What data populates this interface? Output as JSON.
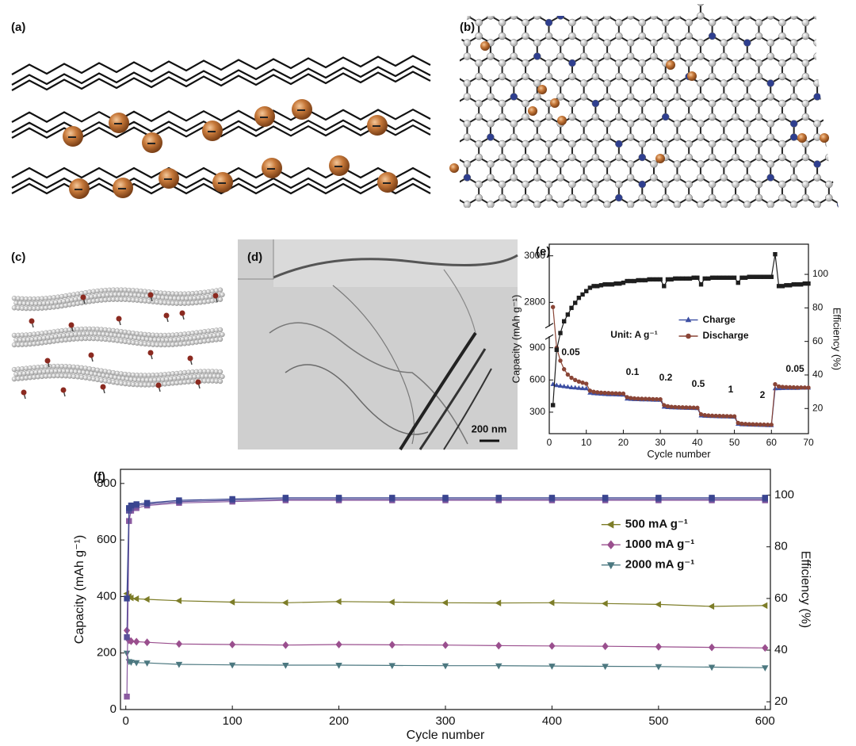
{
  "panels": {
    "a": "(a)",
    "b": "(b)",
    "c": "(c)",
    "d": "(d)",
    "e": "(e)",
    "f": "(f)"
  },
  "scale_bar": "200 nm",
  "chart_data": [
    {
      "type": "line",
      "xlabel": "Cycle number",
      "ylabel": "Capacity (mAh g⁻¹)",
      "y2label": "Efficiency (%)",
      "x": [
        1,
        2,
        3,
        4,
        5,
        6,
        7,
        8,
        9,
        10,
        11,
        12,
        13,
        14,
        15,
        16,
        17,
        18,
        19,
        20,
        21,
        22,
        23,
        24,
        25,
        26,
        27,
        28,
        29,
        30,
        31,
        32,
        33,
        34,
        35,
        36,
        37,
        38,
        39,
        40,
        41,
        42,
        43,
        44,
        45,
        46,
        47,
        48,
        49,
        50,
        51,
        52,
        53,
        54,
        55,
        56,
        57,
        58,
        59,
        60,
        61,
        62,
        63,
        64,
        65,
        66,
        67,
        68,
        69,
        70
      ],
      "xlim": [
        0,
        70
      ],
      "xticks": [
        0,
        10,
        20,
        30,
        40,
        50,
        60,
        70
      ],
      "ylim": [
        100,
        3050
      ],
      "ybreak": [
        1000,
        2700
      ],
      "yticks": [
        300,
        600,
        900,
        2800,
        3000
      ],
      "y2lim": [
        5,
        118
      ],
      "y2ticks": [
        20,
        40,
        60,
        80,
        100
      ],
      "legend": "right",
      "annotations": [
        "Unit: A g⁻¹",
        "0.05",
        "0.1",
        "0.2",
        "0.5",
        "1",
        "2",
        "0.05"
      ],
      "series": [
        {
          "name": "Charge",
          "color": "#3d4fa3",
          "marker": "triangle",
          "values": [
            560,
            550,
            545,
            540,
            535,
            530,
            528,
            525,
            522,
            520,
            480,
            475,
            472,
            470,
            468,
            466,
            465,
            464,
            463,
            462,
            425,
            422,
            420,
            419,
            418,
            417,
            416,
            415,
            414,
            413,
            350,
            345,
            343,
            342,
            341,
            340,
            339,
            338,
            337,
            336,
            268,
            265,
            263,
            262,
            261,
            260,
            259,
            258,
            257,
            256,
            190,
            186,
            184,
            183,
            182,
            181,
            180,
            179,
            178,
            178,
            520,
            522,
            523,
            524,
            524,
            525,
            525,
            526,
            526,
            527
          ]
        },
        {
          "name": "Discharge",
          "color": "#8a4536",
          "marker": "circle",
          "values": [
            2780,
            900,
            780,
            700,
            650,
            620,
            600,
            585,
            575,
            565,
            500,
            490,
            485,
            482,
            480,
            478,
            476,
            475,
            474,
            473,
            440,
            432,
            428,
            426,
            425,
            424,
            423,
            422,
            421,
            420,
            365,
            355,
            350,
            348,
            346,
            345,
            344,
            343,
            342,
            341,
            280,
            272,
            269,
            267,
            266,
            265,
            264,
            263,
            262,
            261,
            200,
            193,
            190,
            188,
            187,
            186,
            185,
            184,
            183,
            183,
            560,
            540,
            535,
            533,
            532,
            531,
            530,
            530,
            529,
            529
          ]
        },
        {
          "color": "#1e1e1e",
          "marker": "square",
          "axis": "y2",
          "values": [
            22,
            55,
            65,
            72,
            76,
            80,
            83,
            86,
            88,
            90,
            92,
            93,
            93,
            93.5,
            94,
            94,
            94,
            94.5,
            94.5,
            95,
            96,
            96,
            96,
            96.5,
            96.5,
            96.5,
            97,
            97,
            97,
            97,
            93,
            97,
            97,
            97.5,
            97.5,
            97.5,
            97.5,
            97.5,
            98,
            98,
            94,
            97.5,
            97.5,
            98,
            98,
            98,
            98,
            98,
            98,
            98,
            95,
            98,
            98,
            98.5,
            98.5,
            98.5,
            98.5,
            98.5,
            98.5,
            98.5,
            112,
            93,
            93,
            93.5,
            93.5,
            94,
            94,
            94,
            94.5,
            94.5
          ]
        }
      ]
    },
    {
      "type": "line",
      "xlabel": "Cycle number",
      "ylabel": "Capacity (mAh g⁻¹)",
      "y2label": "Efficiency (%)",
      "x": [
        1,
        3,
        5,
        10,
        20,
        50,
        100,
        150,
        200,
        250,
        300,
        350,
        400,
        450,
        500,
        550,
        600
      ],
      "xlim": [
        -5,
        605
      ],
      "xticks": [
        0,
        100,
        200,
        300,
        400,
        500,
        600
      ],
      "ylim": [
        0,
        850
      ],
      "yticks": [
        0,
        200,
        400,
        600,
        800
      ],
      "y2lim": [
        17,
        110
      ],
      "y2ticks": [
        20,
        40,
        60,
        80,
        100
      ],
      "legend": "upper right",
      "series": [
        {
          "name": "500 mA g⁻¹",
          "color": "#7d7d28",
          "marker": "left-triangle",
          "values": [
            410,
            400,
            395,
            392,
            390,
            385,
            380,
            378,
            382,
            380,
            378,
            377,
            378,
            375,
            372,
            365,
            368
          ]
        },
        {
          "name": "1000 mA g⁻¹",
          "color": "#9a4f8e",
          "marker": "diamond",
          "values": [
            280,
            245,
            242,
            240,
            238,
            232,
            230,
            228,
            230,
            229,
            228,
            226,
            225,
            224,
            222,
            220,
            218
          ]
        },
        {
          "name": "2000 mA g⁻¹",
          "color": "#4c7880",
          "marker": "down-triangle",
          "values": [
            200,
            170,
            168,
            166,
            165,
            160,
            158,
            157,
            157,
            156,
            155,
            155,
            154,
            153,
            152,
            150,
            148
          ]
        },
        {
          "color": "#8a5aa0",
          "marker": "square",
          "axis": "y2",
          "values": [
            22,
            90,
            94,
            95,
            96,
            97,
            97.5,
            98,
            98,
            98,
            98,
            98,
            98,
            98,
            98,
            98,
            98
          ]
        },
        {
          "color": "#5a4f9a",
          "marker": "square",
          "axis": "y2",
          "values": [
            45,
            94,
            95,
            96,
            96.5,
            97.5,
            98,
            98.5,
            98.5,
            98.5,
            98.5,
            98.5,
            98.5,
            98.5,
            98.5,
            98.5,
            98.5
          ]
        },
        {
          "color": "#3a4590",
          "marker": "square",
          "axis": "y2",
          "values": [
            60,
            95,
            96,
            96.5,
            97,
            98,
            98.5,
            99,
            99,
            99,
            99,
            99,
            99,
            99,
            99,
            99,
            99
          ]
        }
      ]
    }
  ]
}
